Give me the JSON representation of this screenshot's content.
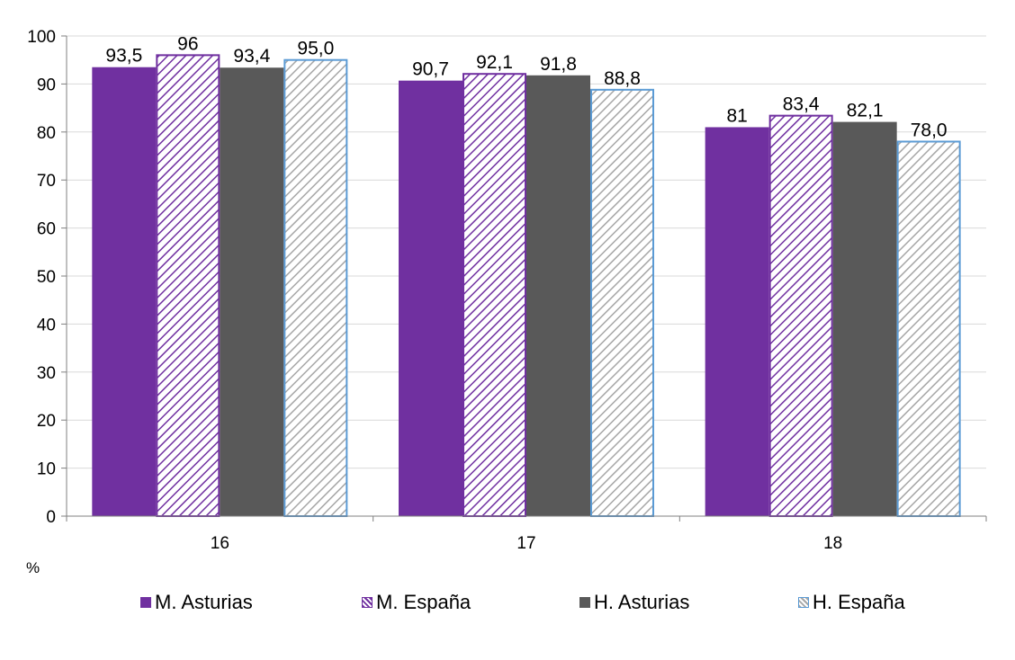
{
  "chart_data": {
    "type": "bar",
    "categories": [
      "16",
      "17",
      "18"
    ],
    "series": [
      {
        "name": "M. Asturias",
        "values": [
          93.5,
          90.7,
          81
        ],
        "labels": [
          "93,5",
          "90,7",
          "81"
        ],
        "color": "#7030a0",
        "pattern": "solid"
      },
      {
        "name": "M. España",
        "values": [
          96,
          92.1,
          83.4
        ],
        "labels": [
          "96",
          "92,1",
          "83,4"
        ],
        "color": "#7030a0",
        "pattern": "hatched"
      },
      {
        "name": "H. Asturias",
        "values": [
          93.4,
          91.8,
          82.1
        ],
        "labels": [
          "93,4",
          "91,8",
          "82,1"
        ],
        "color": "#595959",
        "pattern": "solid"
      },
      {
        "name": "H. España",
        "values": [
          95.0,
          88.8,
          78.0
        ],
        "labels": [
          "95,0",
          "88,8",
          "78,0"
        ],
        "color": "#a6a6a6",
        "border": "#5b9bd5",
        "pattern": "hatched"
      }
    ],
    "ylim": [
      0,
      100
    ],
    "yticks": [
      "0",
      "10",
      "20",
      "30",
      "40",
      "50",
      "60",
      "70",
      "80",
      "90",
      "100"
    ],
    "ylabel": "%",
    "grid": true,
    "legend_position": "bottom"
  }
}
